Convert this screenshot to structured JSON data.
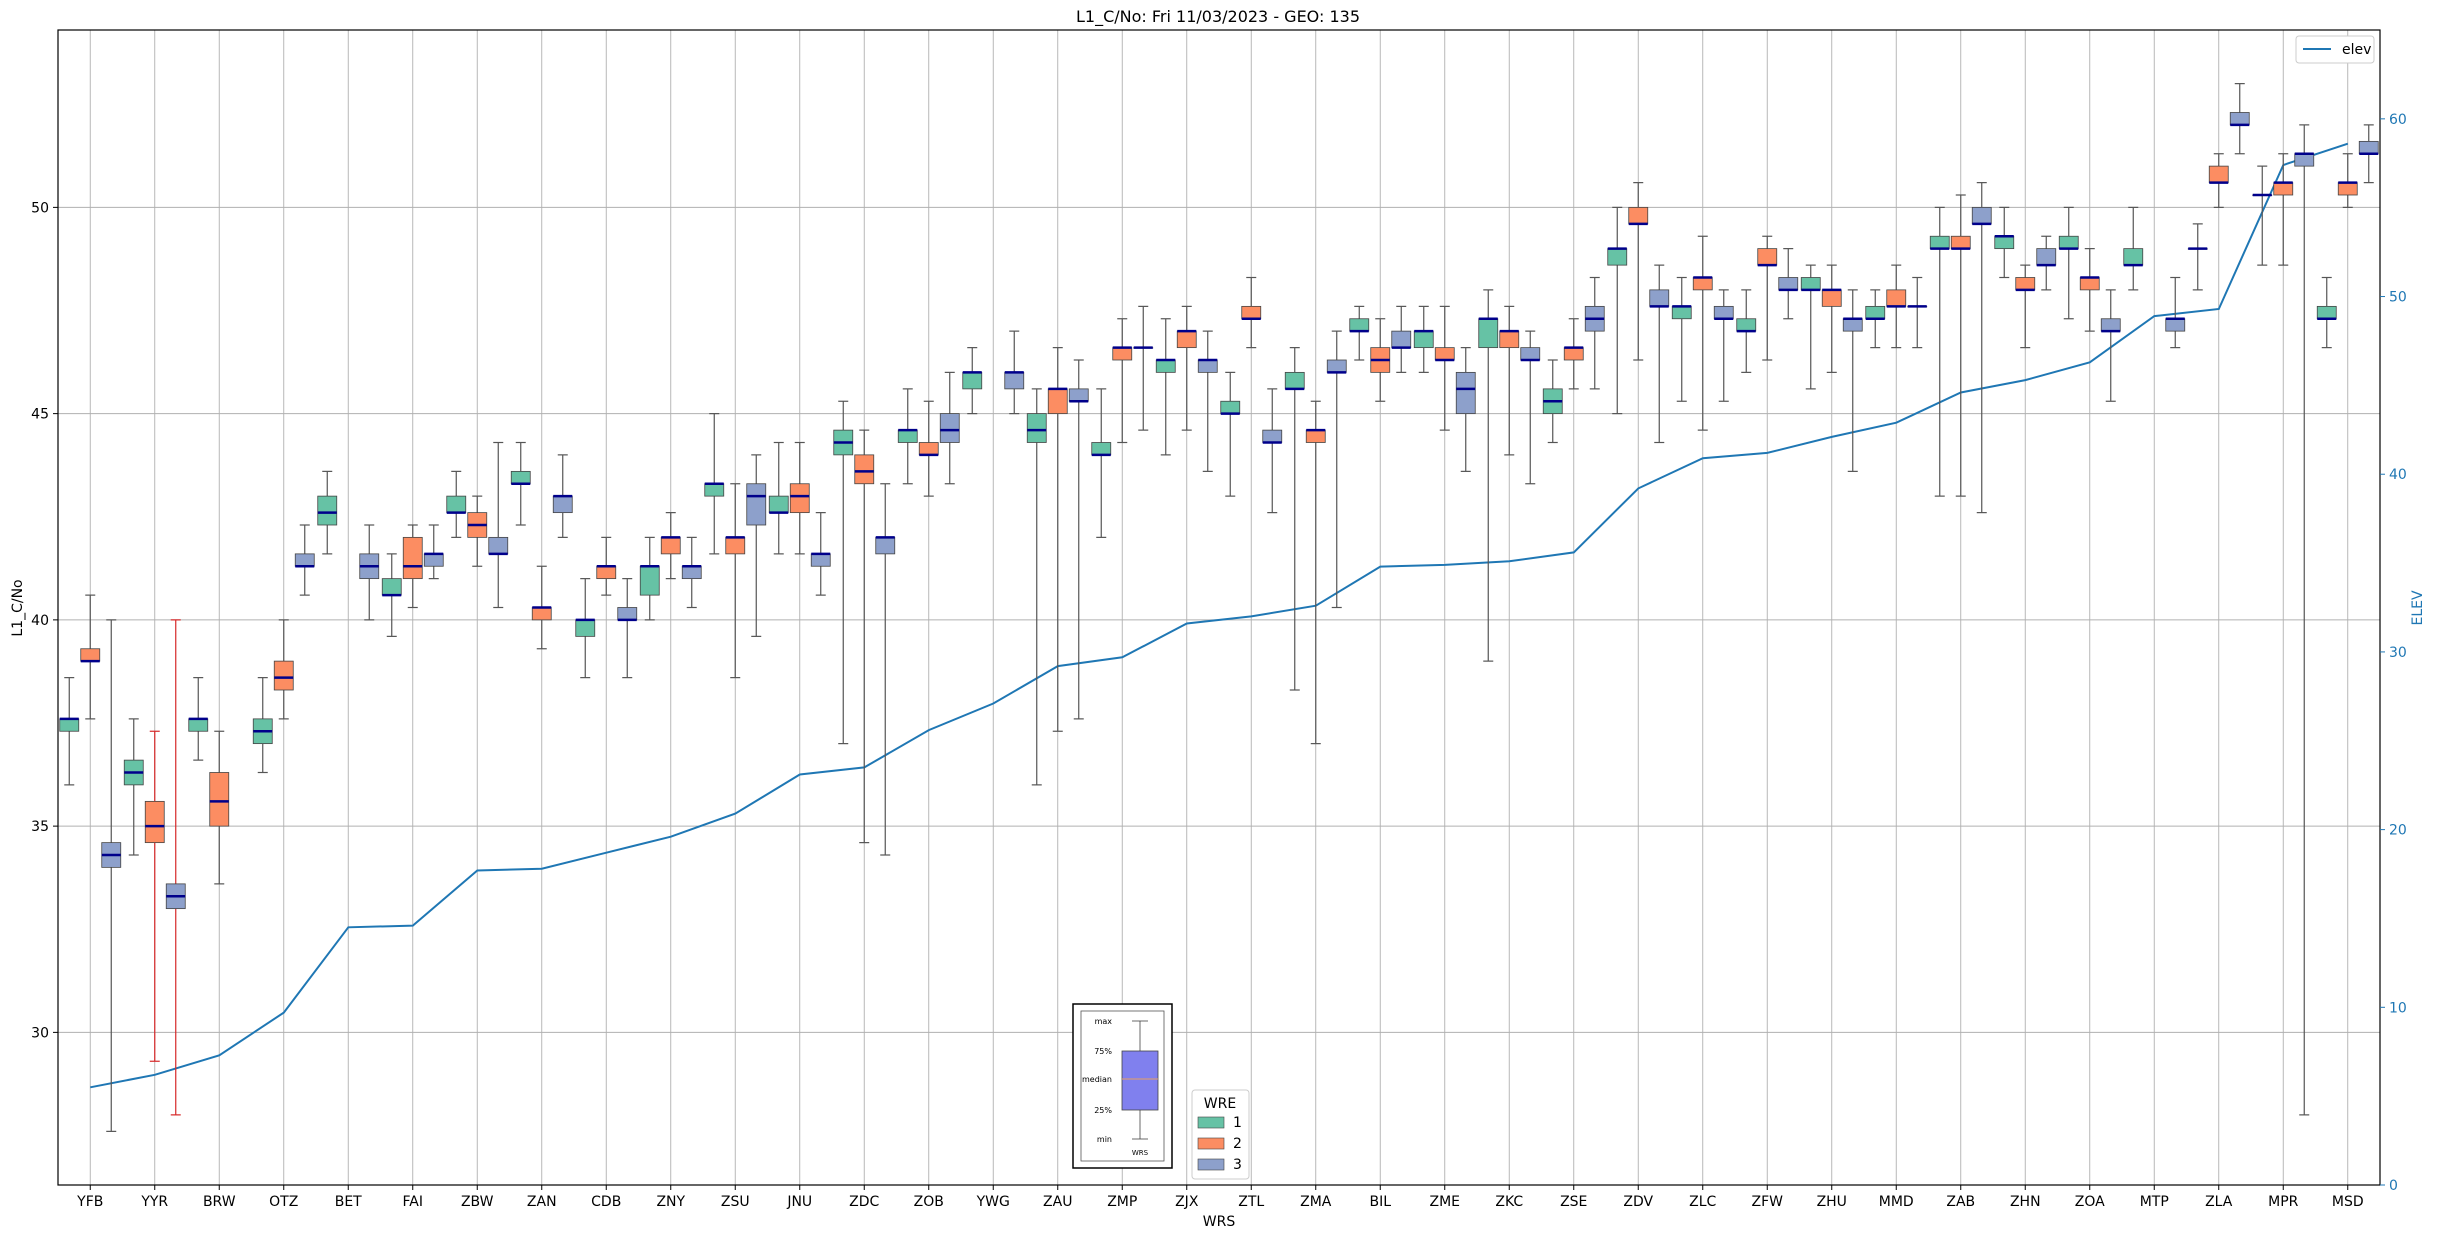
{
  "chart_data": {
    "type": "box",
    "title": "L1_C/No: Fri 11/03/2023 - GEO: 135",
    "xlabel": "WRS",
    "ylabel": "L1_C/No",
    "y2label": "ELEV",
    "ylim": [
      26.3,
      54.3
    ],
    "y2lim": [
      0,
      65
    ],
    "yticks": [
      30,
      35,
      40,
      45,
      50
    ],
    "y2ticks": [
      0,
      10,
      20,
      30,
      40,
      50,
      60
    ],
    "grid": true,
    "categories": [
      "YFB",
      "YYR",
      "BRW",
      "OTZ",
      "BET",
      "FAI",
      "ZBW",
      "ZAN",
      "CDB",
      "ZNY",
      "ZSU",
      "JNU",
      "ZDC",
      "ZOB",
      "YWG",
      "ZAU",
      "ZMP",
      "ZJX",
      "ZTL",
      "ZMA",
      "BIL",
      "ZME",
      "ZKC",
      "ZSE",
      "ZDV",
      "ZLC",
      "ZFW",
      "ZHU",
      "MMD",
      "ZAB",
      "ZHN",
      "ZOA",
      "MTP",
      "ZLA",
      "MPR",
      "MSD"
    ],
    "wre_colors": {
      "1": "#66c2a5",
      "2": "#fc8d62",
      "3": "#8da0cb"
    },
    "median_color": "#00008b",
    "elev_line_color": "#1f77b4",
    "highlight_whisker_color": "#d62728",
    "boxes": [
      {
        "station": "YFB",
        "wre": 1,
        "min": 36.0,
        "q1": 37.3,
        "median": 37.6,
        "q3": 37.6,
        "max": 38.6
      },
      {
        "station": "YFB",
        "wre": 2,
        "min": 37.6,
        "q1": 39.0,
        "median": 39.0,
        "q3": 39.3,
        "max": 40.6
      },
      {
        "station": "YFB",
        "wre": 3,
        "min": 27.6,
        "q1": 34.0,
        "median": 34.3,
        "q3": 34.6,
        "max": 40.0
      },
      {
        "station": "YYR",
        "wre": 1,
        "min": 34.3,
        "q1": 36.0,
        "median": 36.3,
        "q3": 36.6,
        "max": 37.6
      },
      {
        "station": "YYR",
        "wre": 2,
        "min": 29.3,
        "q1": 34.6,
        "median": 35.0,
        "q3": 35.6,
        "max": 37.3,
        "highlight": true
      },
      {
        "station": "YYR",
        "wre": 3,
        "min": 28.0,
        "q1": 33.0,
        "median": 33.3,
        "q3": 33.6,
        "max": 40.0,
        "highlight": true
      },
      {
        "station": "BRW",
        "wre": 1,
        "min": 36.6,
        "q1": 37.3,
        "median": 37.6,
        "q3": 37.6,
        "max": 38.6
      },
      {
        "station": "BRW",
        "wre": 2,
        "min": 33.6,
        "q1": 35.0,
        "median": 35.6,
        "q3": 36.3,
        "max": 37.3
      },
      {
        "station": "OTZ",
        "wre": 1,
        "min": 36.3,
        "q1": 37.0,
        "median": 37.3,
        "q3": 37.6,
        "max": 38.6
      },
      {
        "station": "OTZ",
        "wre": 2,
        "min": 37.6,
        "q1": 38.3,
        "median": 38.6,
        "q3": 39.0,
        "max": 40.0
      },
      {
        "station": "OTZ",
        "wre": 3,
        "min": 40.6,
        "q1": 41.3,
        "median": 41.3,
        "q3": 41.6,
        "max": 42.3
      },
      {
        "station": "BET",
        "wre": 1,
        "min": 41.6,
        "q1": 42.3,
        "median": 42.6,
        "q3": 43.0,
        "max": 43.6
      },
      {
        "station": "BET",
        "wre": 3,
        "min": 40.0,
        "q1": 41.0,
        "median": 41.3,
        "q3": 41.6,
        "max": 42.3
      },
      {
        "station": "FAI",
        "wre": 1,
        "min": 39.6,
        "q1": 40.6,
        "median": 40.6,
        "q3": 41.0,
        "max": 41.6
      },
      {
        "station": "FAI",
        "wre": 2,
        "min": 40.3,
        "q1": 41.0,
        "median": 41.3,
        "q3": 42.0,
        "max": 42.3
      },
      {
        "station": "FAI",
        "wre": 3,
        "min": 41.0,
        "q1": 41.3,
        "median": 41.6,
        "q3": 41.6,
        "max": 42.3
      },
      {
        "station": "ZBW",
        "wre": 1,
        "min": 42.0,
        "q1": 42.6,
        "median": 42.6,
        "q3": 43.0,
        "max": 43.6
      },
      {
        "station": "ZBW",
        "wre": 2,
        "min": 41.3,
        "q1": 42.0,
        "median": 42.3,
        "q3": 42.6,
        "max": 43.0
      },
      {
        "station": "ZBW",
        "wre": 3,
        "min": 40.3,
        "q1": 41.6,
        "median": 41.6,
        "q3": 42.0,
        "max": 44.3
      },
      {
        "station": "ZAN",
        "wre": 1,
        "min": 42.3,
        "q1": 43.3,
        "median": 43.3,
        "q3": 43.6,
        "max": 44.3
      },
      {
        "station": "ZAN",
        "wre": 2,
        "min": 39.3,
        "q1": 40.0,
        "median": 40.3,
        "q3": 40.3,
        "max": 41.3
      },
      {
        "station": "ZAN",
        "wre": 3,
        "min": 42.0,
        "q1": 42.6,
        "median": 43.0,
        "q3": 43.0,
        "max": 44.0
      },
      {
        "station": "CDB",
        "wre": 1,
        "min": 38.6,
        "q1": 39.6,
        "median": 40.0,
        "q3": 40.0,
        "max": 41.0
      },
      {
        "station": "CDB",
        "wre": 2,
        "min": 40.6,
        "q1": 41.0,
        "median": 41.3,
        "q3": 41.3,
        "max": 42.0
      },
      {
        "station": "CDB",
        "wre": 3,
        "min": 38.6,
        "q1": 40.0,
        "median": 40.0,
        "q3": 40.3,
        "max": 41.0
      },
      {
        "station": "ZNY",
        "wre": 1,
        "min": 40.0,
        "q1": 40.6,
        "median": 41.3,
        "q3": 41.3,
        "max": 42.0
      },
      {
        "station": "ZNY",
        "wre": 2,
        "min": 41.0,
        "q1": 41.6,
        "median": 42.0,
        "q3": 42.0,
        "max": 42.6
      },
      {
        "station": "ZNY",
        "wre": 3,
        "min": 40.3,
        "q1": 41.0,
        "median": 41.3,
        "q3": 41.3,
        "max": 42.0
      },
      {
        "station": "ZSU",
        "wre": 1,
        "min": 41.6,
        "q1": 43.0,
        "median": 43.3,
        "q3": 43.3,
        "max": 45.0
      },
      {
        "station": "ZSU",
        "wre": 2,
        "min": 38.6,
        "q1": 41.6,
        "median": 42.0,
        "q3": 42.0,
        "max": 43.3
      },
      {
        "station": "ZSU",
        "wre": 3,
        "min": 39.6,
        "q1": 42.3,
        "median": 43.0,
        "q3": 43.3,
        "max": 44.0
      },
      {
        "station": "JNU",
        "wre": 1,
        "min": 41.6,
        "q1": 42.6,
        "median": 42.6,
        "q3": 43.0,
        "max": 44.3
      },
      {
        "station": "JNU",
        "wre": 2,
        "min": 41.6,
        "q1": 42.6,
        "median": 43.0,
        "q3": 43.3,
        "max": 44.3
      },
      {
        "station": "JNU",
        "wre": 3,
        "min": 40.6,
        "q1": 41.3,
        "median": 41.6,
        "q3": 41.6,
        "max": 42.6
      },
      {
        "station": "ZDC",
        "wre": 1,
        "min": 37.0,
        "q1": 44.0,
        "median": 44.3,
        "q3": 44.6,
        "max": 45.3
      },
      {
        "station": "ZDC",
        "wre": 2,
        "min": 34.6,
        "q1": 43.3,
        "median": 43.6,
        "q3": 44.0,
        "max": 44.6
      },
      {
        "station": "ZDC",
        "wre": 3,
        "min": 34.3,
        "q1": 41.6,
        "median": 42.0,
        "q3": 42.0,
        "max": 43.3
      },
      {
        "station": "ZOB",
        "wre": 1,
        "min": 43.3,
        "q1": 44.3,
        "median": 44.6,
        "q3": 44.6,
        "max": 45.6
      },
      {
        "station": "ZOB",
        "wre": 2,
        "min": 43.0,
        "q1": 44.0,
        "median": 44.0,
        "q3": 44.3,
        "max": 45.3
      },
      {
        "station": "ZOB",
        "wre": 3,
        "min": 43.3,
        "q1": 44.3,
        "median": 44.6,
        "q3": 45.0,
        "max": 46.0
      },
      {
        "station": "YWG",
        "wre": 1,
        "min": 45.0,
        "q1": 45.6,
        "median": 46.0,
        "q3": 46.0,
        "max": 46.6
      },
      {
        "station": "YWG",
        "wre": 3,
        "min": 45.0,
        "q1": 45.6,
        "median": 46.0,
        "q3": 46.0,
        "max": 47.0
      },
      {
        "station": "ZAU",
        "wre": 1,
        "min": 36.0,
        "q1": 44.3,
        "median": 44.6,
        "q3": 45.0,
        "max": 45.6
      },
      {
        "station": "ZAU",
        "wre": 2,
        "min": 37.3,
        "q1": 45.0,
        "median": 45.6,
        "q3": 45.6,
        "max": 46.6
      },
      {
        "station": "ZAU",
        "wre": 3,
        "min": 37.6,
        "q1": 45.3,
        "median": 45.3,
        "q3": 45.6,
        "max": 46.3
      },
      {
        "station": "ZMP",
        "wre": 1,
        "min": 42.0,
        "q1": 44.0,
        "median": 44.0,
        "q3": 44.3,
        "max": 45.6
      },
      {
        "station": "ZMP",
        "wre": 2,
        "min": 44.3,
        "q1": 46.3,
        "median": 46.6,
        "q3": 46.6,
        "max": 47.3
      },
      {
        "station": "ZMP",
        "wre": 3,
        "min": 44.6,
        "q1": 46.6,
        "median": 46.6,
        "q3": 46.6,
        "max": 47.6
      },
      {
        "station": "ZJX",
        "wre": 1,
        "min": 44.0,
        "q1": 46.0,
        "median": 46.3,
        "q3": 46.3,
        "max": 47.3
      },
      {
        "station": "ZJX",
        "wre": 2,
        "min": 44.6,
        "q1": 46.6,
        "median": 47.0,
        "q3": 47.0,
        "max": 47.6
      },
      {
        "station": "ZJX",
        "wre": 3,
        "min": 43.6,
        "q1": 46.0,
        "median": 46.3,
        "q3": 46.3,
        "max": 47.0
      },
      {
        "station": "ZTL",
        "wre": 1,
        "min": 43.0,
        "q1": 45.0,
        "median": 45.0,
        "q3": 45.3,
        "max": 46.0
      },
      {
        "station": "ZTL",
        "wre": 2,
        "min": 46.6,
        "q1": 47.3,
        "median": 47.3,
        "q3": 47.6,
        "max": 48.3
      },
      {
        "station": "ZTL",
        "wre": 3,
        "min": 42.6,
        "q1": 44.3,
        "median": 44.3,
        "q3": 44.6,
        "max": 45.6
      },
      {
        "station": "ZMA",
        "wre": 1,
        "min": 38.3,
        "q1": 45.6,
        "median": 45.6,
        "q3": 46.0,
        "max": 46.6
      },
      {
        "station": "ZMA",
        "wre": 2,
        "min": 37.0,
        "q1": 44.3,
        "median": 44.6,
        "q3": 44.6,
        "max": 45.3
      },
      {
        "station": "ZMA",
        "wre": 3,
        "min": 40.3,
        "q1": 46.0,
        "median": 46.0,
        "q3": 46.3,
        "max": 47.0
      },
      {
        "station": "BIL",
        "wre": 1,
        "min": 46.3,
        "q1": 47.0,
        "median": 47.0,
        "q3": 47.3,
        "max": 47.6
      },
      {
        "station": "BIL",
        "wre": 2,
        "min": 45.3,
        "q1": 46.0,
        "median": 46.3,
        "q3": 46.6,
        "max": 47.3
      },
      {
        "station": "BIL",
        "wre": 3,
        "min": 46.0,
        "q1": 46.6,
        "median": 46.6,
        "q3": 47.0,
        "max": 47.6
      },
      {
        "station": "ZME",
        "wre": 1,
        "min": 46.0,
        "q1": 46.6,
        "median": 47.0,
        "q3": 47.0,
        "max": 47.6
      },
      {
        "station": "ZME",
        "wre": 2,
        "min": 44.6,
        "q1": 46.3,
        "median": 46.3,
        "q3": 46.6,
        "max": 47.6
      },
      {
        "station": "ZME",
        "wre": 3,
        "min": 43.6,
        "q1": 45.0,
        "median": 45.6,
        "q3": 46.0,
        "max": 46.6
      },
      {
        "station": "ZKC",
        "wre": 1,
        "min": 39.0,
        "q1": 46.6,
        "median": 47.3,
        "q3": 47.3,
        "max": 48.0
      },
      {
        "station": "ZKC",
        "wre": 2,
        "min": 44.0,
        "q1": 46.6,
        "median": 47.0,
        "q3": 47.0,
        "max": 47.6
      },
      {
        "station": "ZKC",
        "wre": 3,
        "min": 43.3,
        "q1": 46.3,
        "median": 46.3,
        "q3": 46.6,
        "max": 47.0
      },
      {
        "station": "ZSE",
        "wre": 1,
        "min": 44.3,
        "q1": 45.0,
        "median": 45.3,
        "q3": 45.6,
        "max": 46.3
      },
      {
        "station": "ZSE",
        "wre": 2,
        "min": 45.6,
        "q1": 46.3,
        "median": 46.6,
        "q3": 46.6,
        "max": 47.3
      },
      {
        "station": "ZSE",
        "wre": 3,
        "min": 45.6,
        "q1": 47.0,
        "median": 47.3,
        "q3": 47.6,
        "max": 48.3
      },
      {
        "station": "ZDV",
        "wre": 1,
        "min": 45.0,
        "q1": 48.6,
        "median": 49.0,
        "q3": 49.0,
        "max": 50.0
      },
      {
        "station": "ZDV",
        "wre": 2,
        "min": 46.3,
        "q1": 49.6,
        "median": 49.6,
        "q3": 50.0,
        "max": 50.6
      },
      {
        "station": "ZDV",
        "wre": 3,
        "min": 44.3,
        "q1": 47.6,
        "median": 47.6,
        "q3": 48.0,
        "max": 48.6
      },
      {
        "station": "ZLC",
        "wre": 1,
        "min": 45.3,
        "q1": 47.3,
        "median": 47.6,
        "q3": 47.6,
        "max": 48.3
      },
      {
        "station": "ZLC",
        "wre": 2,
        "min": 44.6,
        "q1": 48.0,
        "median": 48.3,
        "q3": 48.3,
        "max": 49.3
      },
      {
        "station": "ZLC",
        "wre": 3,
        "min": 45.3,
        "q1": 47.3,
        "median": 47.3,
        "q3": 47.6,
        "max": 48.0
      },
      {
        "station": "ZFW",
        "wre": 1,
        "min": 46.0,
        "q1": 47.0,
        "median": 47.0,
        "q3": 47.3,
        "max": 48.0
      },
      {
        "station": "ZFW",
        "wre": 2,
        "min": 46.3,
        "q1": 48.6,
        "median": 48.6,
        "q3": 49.0,
        "max": 49.3
      },
      {
        "station": "ZFW",
        "wre": 3,
        "min": 47.3,
        "q1": 48.0,
        "median": 48.0,
        "q3": 48.3,
        "max": 49.0
      },
      {
        "station": "ZHU",
        "wre": 1,
        "min": 45.6,
        "q1": 48.0,
        "median": 48.0,
        "q3": 48.3,
        "max": 48.6
      },
      {
        "station": "ZHU",
        "wre": 2,
        "min": 46.0,
        "q1": 47.6,
        "median": 48.0,
        "q3": 48.0,
        "max": 48.6
      },
      {
        "station": "ZHU",
        "wre": 3,
        "min": 43.6,
        "q1": 47.0,
        "median": 47.3,
        "q3": 47.3,
        "max": 48.0
      },
      {
        "station": "MMD",
        "wre": 1,
        "min": 46.6,
        "q1": 47.3,
        "median": 47.3,
        "q3": 47.6,
        "max": 48.0
      },
      {
        "station": "MMD",
        "wre": 2,
        "min": 46.6,
        "q1": 47.6,
        "median": 47.6,
        "q3": 48.0,
        "max": 48.6
      },
      {
        "station": "MMD",
        "wre": 3,
        "min": 46.6,
        "q1": 47.6,
        "median": 47.6,
        "q3": 47.6,
        "max": 48.3
      },
      {
        "station": "ZAB",
        "wre": 1,
        "min": 43.0,
        "q1": 49.0,
        "median": 49.0,
        "q3": 49.3,
        "max": 50.0
      },
      {
        "station": "ZAB",
        "wre": 2,
        "min": 43.0,
        "q1": 49.0,
        "median": 49.0,
        "q3": 49.3,
        "max": 50.3
      },
      {
        "station": "ZAB",
        "wre": 3,
        "min": 42.6,
        "q1": 49.6,
        "median": 49.6,
        "q3": 50.0,
        "max": 50.6
      },
      {
        "station": "ZHN",
        "wre": 1,
        "min": 48.3,
        "q1": 49.0,
        "median": 49.3,
        "q3": 49.3,
        "max": 50.0
      },
      {
        "station": "ZHN",
        "wre": 2,
        "min": 46.6,
        "q1": 48.0,
        "median": 48.0,
        "q3": 48.3,
        "max": 48.6
      },
      {
        "station": "ZHN",
        "wre": 3,
        "min": 48.0,
        "q1": 48.6,
        "median": 48.6,
        "q3": 49.0,
        "max": 49.3
      },
      {
        "station": "ZOA",
        "wre": 1,
        "min": 47.3,
        "q1": 49.0,
        "median": 49.0,
        "q3": 49.3,
        "max": 50.0
      },
      {
        "station": "ZOA",
        "wre": 2,
        "min": 47.0,
        "q1": 48.0,
        "median": 48.3,
        "q3": 48.3,
        "max": 49.0
      },
      {
        "station": "ZOA",
        "wre": 3,
        "min": 45.3,
        "q1": 47.0,
        "median": 47.0,
        "q3": 47.3,
        "max": 48.0
      },
      {
        "station": "MTP",
        "wre": 1,
        "min": 48.0,
        "q1": 48.6,
        "median": 48.6,
        "q3": 49.0,
        "max": 50.0
      },
      {
        "station": "MTP",
        "wre": 3,
        "min": 46.6,
        "q1": 47.0,
        "median": 47.3,
        "q3": 47.3,
        "max": 48.3
      },
      {
        "station": "ZLA",
        "wre": 1,
        "min": 48.0,
        "q1": 49.0,
        "median": 49.0,
        "q3": 49.0,
        "max": 49.6
      },
      {
        "station": "ZLA",
        "wre": 2,
        "min": 50.0,
        "q1": 50.6,
        "median": 50.6,
        "q3": 51.0,
        "max": 51.3
      },
      {
        "station": "ZLA",
        "wre": 3,
        "min": 51.3,
        "q1": 52.0,
        "median": 52.0,
        "q3": 52.3,
        "max": 53.0
      },
      {
        "station": "MPR",
        "wre": 1,
        "min": 48.6,
        "q1": 50.3,
        "median": 50.3,
        "q3": 50.3,
        "max": 51.0
      },
      {
        "station": "MPR",
        "wre": 2,
        "min": 48.6,
        "q1": 50.3,
        "median": 50.6,
        "q3": 50.6,
        "max": 51.3
      },
      {
        "station": "MPR",
        "wre": 3,
        "min": 28.0,
        "q1": 51.0,
        "median": 51.3,
        "q3": 51.3,
        "max": 52.0
      },
      {
        "station": "MSD",
        "wre": 1,
        "min": 46.6,
        "q1": 47.3,
        "median": 47.3,
        "q3": 47.6,
        "max": 48.3
      },
      {
        "station": "MSD",
        "wre": 2,
        "min": 50.0,
        "q1": 50.3,
        "median": 50.6,
        "q3": 50.6,
        "max": 51.3
      },
      {
        "station": "MSD",
        "wre": 3,
        "min": 50.6,
        "q1": 51.3,
        "median": 51.3,
        "q3": 51.6,
        "max": 52.0
      }
    ],
    "elev_series": {
      "name": "elev",
      "values": [
        5.5,
        6.2,
        7.3,
        9.7,
        14.5,
        14.6,
        17.7,
        17.8,
        18.7,
        19.6,
        20.9,
        23.1,
        23.5,
        25.6,
        27.1,
        29.2,
        29.7,
        31.6,
        32.0,
        32.6,
        34.8,
        34.9,
        35.1,
        35.6,
        39.2,
        40.9,
        41.2,
        42.1,
        42.9,
        44.6,
        45.3,
        46.3,
        48.9,
        49.3,
        57.4,
        58.6
      ]
    },
    "legend_elev": {
      "position": "top-right",
      "label": "elev"
    },
    "legend_wre": {
      "position": "bottom-center",
      "title": "WRE",
      "entries": [
        "1",
        "2",
        "3"
      ]
    },
    "boxplot_key": {
      "position": "bottom-center",
      "labels": [
        "max",
        "75%",
        "median",
        "25%",
        "min"
      ],
      "xlabel": "WRS"
    }
  }
}
